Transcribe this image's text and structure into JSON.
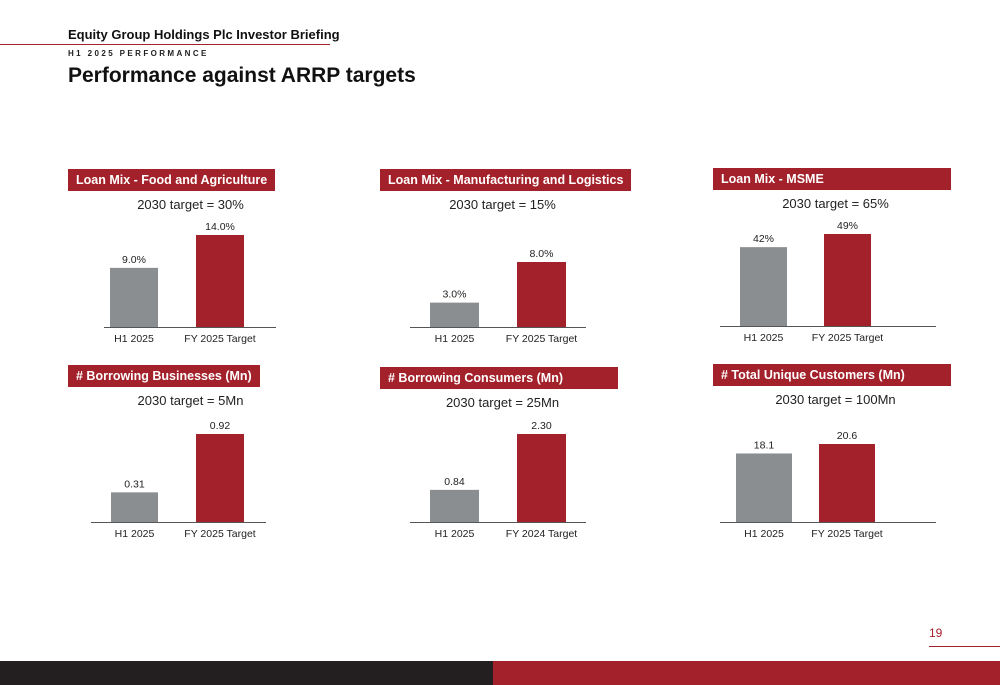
{
  "header": {
    "brand": "Equity Group Holdings Plc Investor Briefing",
    "section": "H1 2025 PERFORMANCE",
    "title": "Performance against ARRP targets"
  },
  "colors": {
    "actual": "#8b8e91",
    "target": "#a3212a"
  },
  "chart_data": [
    {
      "type": "bar",
      "title": "Loan Mix - Food and Agriculture",
      "subtitle": "2030 target = 30%",
      "categories": [
        "H1 2025",
        "FY 2025 Target"
      ],
      "values": [
        9.0,
        14.0
      ],
      "labels": [
        "9.0%",
        "14.0%"
      ]
    },
    {
      "type": "bar",
      "title": "Loan Mix - Manufacturing and Logistics",
      "subtitle": "2030 target = 15%",
      "categories": [
        "H1 2025",
        "FY 2025 Target"
      ],
      "values": [
        3.0,
        8.0
      ],
      "labels": [
        "3.0%",
        "8.0%"
      ]
    },
    {
      "type": "bar",
      "title": "Loan Mix - MSME",
      "subtitle": "2030 target = 65%",
      "categories": [
        "H1 2025",
        "FY 2025 Target"
      ],
      "values": [
        42,
        49
      ],
      "labels": [
        "42%",
        "49%"
      ]
    },
    {
      "type": "bar",
      "title": "# Borrowing Businesses (Mn)",
      "subtitle": "2030 target = 5Mn",
      "categories": [
        "H1 2025",
        "FY 2025 Target"
      ],
      "values": [
        0.31,
        0.92
      ],
      "labels": [
        "0.31",
        "0.92"
      ]
    },
    {
      "type": "bar",
      "title": "# Borrowing Consumers (Mn)",
      "subtitle": "2030 target = 25Mn",
      "categories": [
        "H1 2025",
        "FY 2024 Target"
      ],
      "values": [
        0.84,
        2.3
      ],
      "labels": [
        "0.84",
        "2.30"
      ]
    },
    {
      "type": "bar",
      "title": "# Total Unique Customers (Mn)",
      "subtitle": "2030 target = 100Mn",
      "categories": [
        "H1 2025",
        "FY 2025 Target"
      ],
      "values": [
        18.1,
        20.6
      ],
      "labels": [
        "18.1",
        "20.6"
      ]
    }
  ],
  "footer": {
    "page_number": "19"
  }
}
